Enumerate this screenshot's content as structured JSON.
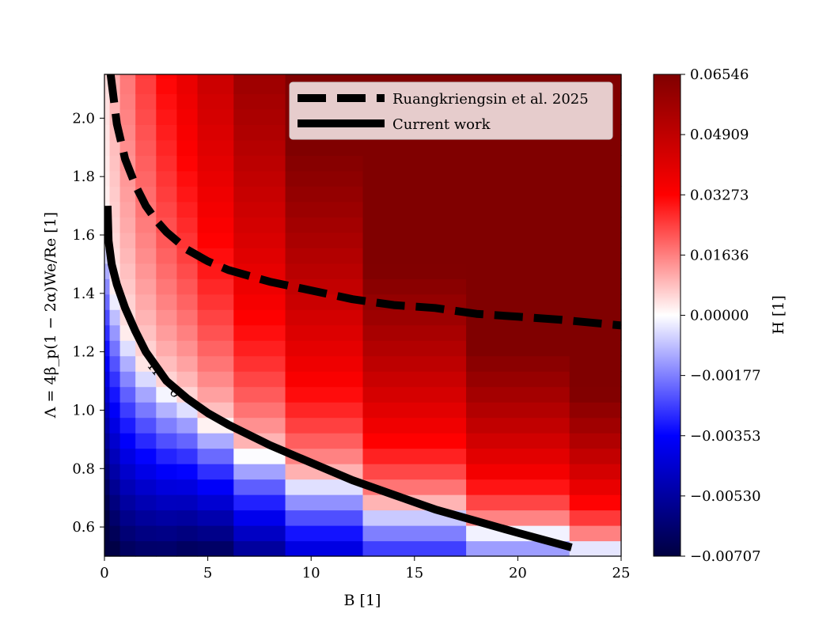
{
  "chart_data": {
    "type": "heatmap",
    "title": "",
    "xlabel": "B [1]",
    "ylabel": "Λ = 4β_p(1 − 2α)We/Re [1]",
    "xlim": [
      0,
      25
    ],
    "ylim": [
      0.5,
      2.15
    ],
    "x_ticks": [
      "0",
      "5",
      "10",
      "15",
      "20",
      "25"
    ],
    "y_ticks": [
      "0.6",
      "0.8",
      "1.0",
      "1.2",
      "1.4",
      "1.6",
      "1.8",
      "2.0"
    ],
    "x_tick_values": [
      0,
      5,
      10,
      15,
      20,
      25
    ],
    "y_tick_values": [
      0.6,
      0.8,
      1.0,
      1.2,
      1.4,
      1.6,
      1.8,
      2.0
    ],
    "x_edges": [
      0,
      0.25,
      0.75,
      1.5,
      2.5,
      3.5,
      4.5,
      6.25,
      8.75,
      12.5,
      17.5,
      22.5,
      25
    ],
    "y_min": 0.5,
    "y_step": 0.0528,
    "y_cells": 32,
    "lambda_zero": [
      1.573,
      1.385,
      1.239,
      1.134,
      1.059,
      1.019,
      0.946,
      0.844,
      0.751,
      0.659,
      0.584,
      0.537
    ],
    "colorbar": {
      "label": "H [1]",
      "tick_labels": [
        "0.06546",
        "0.04909",
        "0.03273",
        "0.01636",
        "0.00000",
        "−0.00177",
        "−0.00353",
        "−0.00530",
        "−0.00707"
      ],
      "min": -0.00707,
      "max": 0.06546,
      "colors": [
        "#000040",
        "#0000ff",
        "#ffffff",
        "#ff0000",
        "#800000"
      ]
    },
    "series": [
      {
        "name": "Ruangkriengsin et al. 2025",
        "style": "dashed",
        "x": [
          0.3,
          0.6,
          1.0,
          1.5,
          2.0,
          2.5,
          3.0,
          4.0,
          5.0,
          6.0,
          7.0,
          8.0,
          10.0,
          12.0,
          14.0,
          16.0,
          18.0,
          20.0,
          22.0,
          25.0
        ],
        "y": [
          2.15,
          1.98,
          1.86,
          1.77,
          1.7,
          1.65,
          1.61,
          1.55,
          1.51,
          1.48,
          1.46,
          1.44,
          1.41,
          1.38,
          1.36,
          1.35,
          1.33,
          1.32,
          1.31,
          1.29
        ]
      },
      {
        "name": "Current work",
        "style": "solid",
        "x": [
          0.15,
          0.2,
          0.35,
          0.6,
          1.0,
          1.5,
          2.0,
          3.0,
          4.0,
          5.0,
          6.0,
          8.0,
          10.0,
          12.0,
          14.0,
          16.0,
          18.0,
          20.0,
          22.6
        ],
        "y": [
          1.7,
          1.58,
          1.5,
          1.43,
          1.35,
          1.27,
          1.2,
          1.1,
          1.04,
          0.99,
          0.95,
          0.88,
          0.82,
          0.76,
          0.71,
          0.66,
          0.62,
          0.58,
          0.53
        ]
      }
    ],
    "contour_label": "H = 0"
  }
}
